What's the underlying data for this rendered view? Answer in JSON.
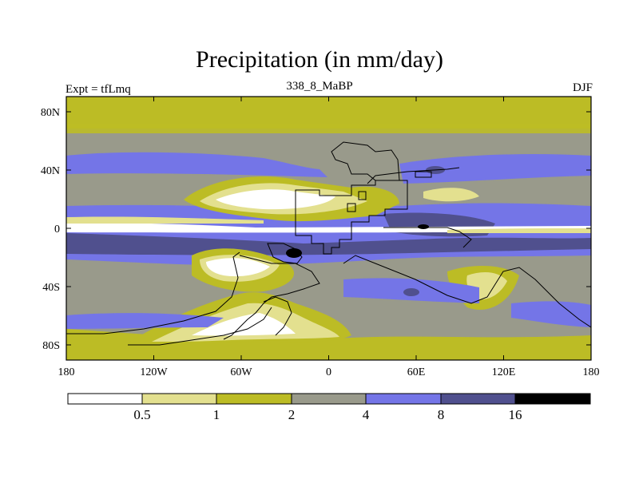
{
  "title": "Precipitation (in mm/day)",
  "left_string": "Expt = tfLmq",
  "center_string": "338_8_MaBP",
  "right_string": "DJF",
  "lat_ticks": [
    "80N",
    "40N",
    "0",
    "40S",
    "80S"
  ],
  "lon_ticks": [
    "180",
    "120W",
    "60W",
    "0",
    "60E",
    "120E",
    "180"
  ],
  "colorbar": {
    "labels": [
      "0.5",
      "1",
      "2",
      "4",
      "8",
      "16"
    ],
    "colors": [
      "#ffffff",
      "#e3e08f",
      "#bcbc25",
      "#999a8b",
      "#7475e7",
      "#50508e",
      "#000000"
    ]
  }
}
